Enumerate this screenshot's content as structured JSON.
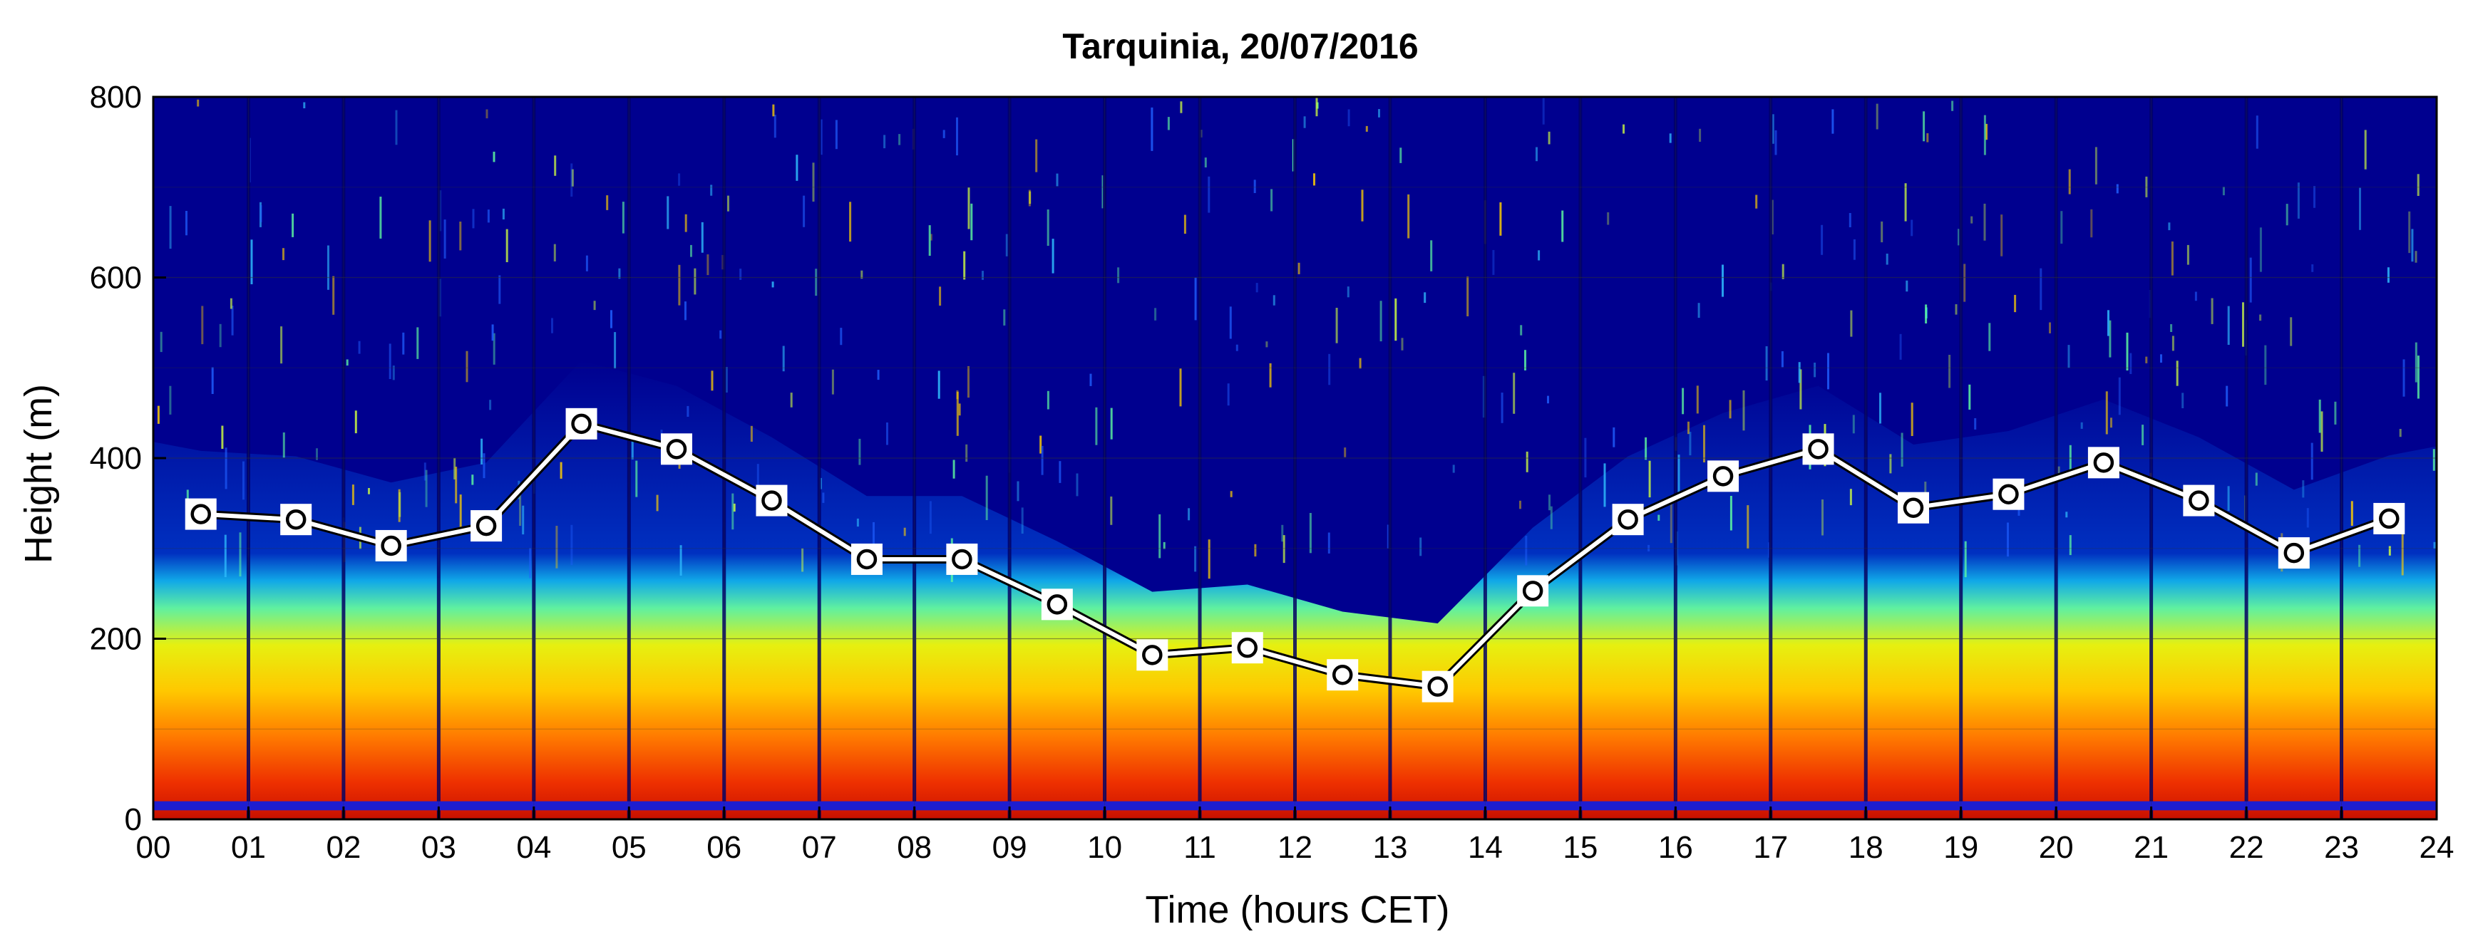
{
  "chart_data": {
    "type": "line",
    "title": "Tarquinia, 20/07/2016",
    "xlabel": "Time (hours CET)",
    "ylabel": "Height (m)",
    "xlim": [
      0,
      24
    ],
    "ylim": [
      0,
      800
    ],
    "x_ticks": [
      "00",
      "01",
      "02",
      "03",
      "04",
      "05",
      "06",
      "07",
      "08",
      "09",
      "10",
      "11",
      "12",
      "13",
      "14",
      "15",
      "16",
      "17",
      "18",
      "19",
      "20",
      "21",
      "22",
      "23",
      "24"
    ],
    "y_ticks": [
      "0",
      "200",
      "400",
      "600",
      "800"
    ],
    "grid": true,
    "background": "sodar backscatter echogram (time-height colormap, jet colors)",
    "series": [
      {
        "x": [
          0.5,
          1.5,
          2.5,
          3.5,
          4.5,
          5.5,
          6.5,
          7.5,
          8.5,
          9.5,
          10.5,
          11.5,
          12.5,
          13.5,
          14.5,
          15.5,
          16.5,
          17.5,
          18.5,
          19.5,
          20.5,
          21.5,
          22.5,
          23.5
        ],
        "values": [
          338,
          332,
          303,
          325,
          438,
          410,
          353,
          288,
          288,
          238,
          182,
          190,
          160,
          147,
          253,
          332,
          380,
          410,
          345,
          360,
          395,
          353,
          295,
          333
        ]
      }
    ],
    "colors": {
      "background_low": "#00008f",
      "line": "#ffffff",
      "line_outline": "#000000",
      "marker": "#000000"
    }
  }
}
